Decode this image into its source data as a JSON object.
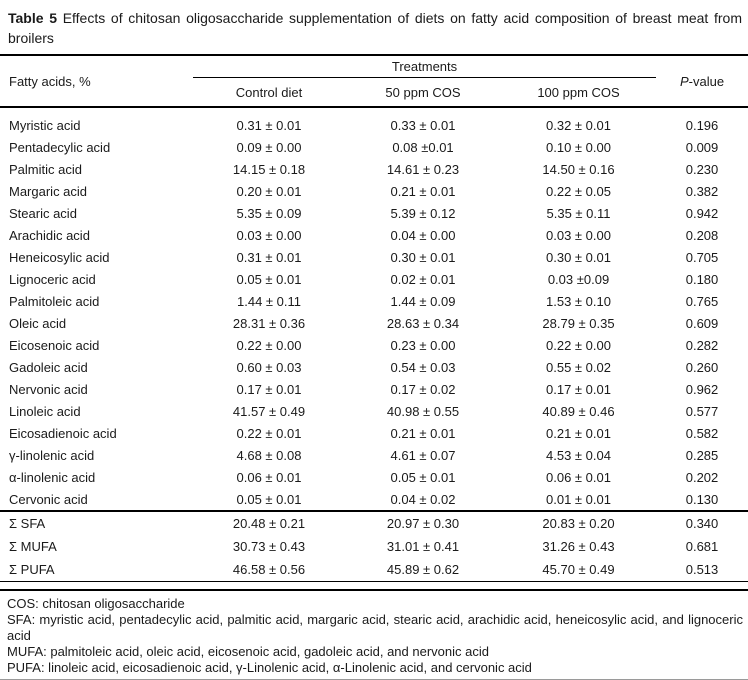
{
  "caption": {
    "label": "Table 5",
    "text": "Effects of chitosan oligosaccharide supplementation of diets on fatty acid composition of breast meat from broilers"
  },
  "table": {
    "header": {
      "row_label": "Fatty acids, %",
      "group_label": "Treatments",
      "treatments": [
        "Control diet",
        "50 ppm COS",
        "100 ppm COS"
      ],
      "p_label_italic": "P",
      "p_label_rest": "-value"
    },
    "rows": [
      {
        "name": "Myristic acid",
        "control": "0.31 ± 0.01",
        "cos50": "0.33 ± 0.01",
        "cos100": "0.32 ± 0.01",
        "p": "0.196"
      },
      {
        "name": "Pentadecylic acid",
        "control": "0.09 ± 0.00",
        "cos50": "0.08 ±0.01",
        "cos100": "0.10 ± 0.00",
        "p": "0.009"
      },
      {
        "name": "Palmitic acid",
        "control": "14.15 ± 0.18",
        "cos50": "14.61 ± 0.23",
        "cos100": "14.50 ± 0.16",
        "p": "0.230"
      },
      {
        "name": "Margaric acid",
        "control": "0.20 ± 0.01",
        "cos50": "0.21 ± 0.01",
        "cos100": "0.22 ± 0.05",
        "p": "0.382"
      },
      {
        "name": "Stearic acid",
        "control": "5.35 ± 0.09",
        "cos50": "5.39 ± 0.12",
        "cos100": "5.35 ± 0.11",
        "p": "0.942"
      },
      {
        "name": "Arachidic acid",
        "control": "0.03 ± 0.00",
        "cos50": "0.04 ± 0.00",
        "cos100": "0.03 ± 0.00",
        "p": "0.208"
      },
      {
        "name": "Heneicosylic acid",
        "control": "0.31 ± 0.01",
        "cos50": "0.30 ± 0.01",
        "cos100": "0.30 ± 0.01",
        "p": "0.705"
      },
      {
        "name": "Lignoceric acid",
        "control": "0.05 ± 0.01",
        "cos50": "0.02 ± 0.01",
        "cos100": "0.03 ±0.09",
        "p": "0.180"
      },
      {
        "name": "Palmitoleic acid",
        "control": "1.44 ± 0.11",
        "cos50": "1.44 ± 0.09",
        "cos100": "1.53 ± 0.10",
        "p": "0.765"
      },
      {
        "name": "Oleic acid",
        "control": "28.31 ± 0.36",
        "cos50": "28.63 ± 0.34",
        "cos100": "28.79 ± 0.35",
        "p": "0.609"
      },
      {
        "name": "Eicosenoic acid",
        "control": "0.22 ± 0.00",
        "cos50": "0.23 ± 0.00",
        "cos100": "0.22 ± 0.00",
        "p": "0.282"
      },
      {
        "name": "Gadoleic acid",
        "control": "0.60 ± 0.03",
        "cos50": "0.54 ± 0.03",
        "cos100": "0.55 ± 0.02",
        "p": "0.260"
      },
      {
        "name": "Nervonic acid",
        "control": "0.17 ± 0.01",
        "cos50": "0.17 ± 0.02",
        "cos100": "0.17 ± 0.01",
        "p": "0.962"
      },
      {
        "name": "Linoleic acid",
        "control": "41.57 ± 0.49",
        "cos50": "40.98 ± 0.55",
        "cos100": "40.89 ± 0.46",
        "p": "0.577"
      },
      {
        "name": "Eicosadienoic acid",
        "control": "0.22 ± 0.01",
        "cos50": "0.21 ± 0.01",
        "cos100": "0.21 ± 0.01",
        "p": "0.582"
      },
      {
        "name": "γ-linolenic acid",
        "control": "4.68 ± 0.08",
        "cos50": "4.61 ± 0.07",
        "cos100": "4.53 ± 0.04",
        "p": "0.285"
      },
      {
        "name": "α-linolenic acid",
        "control": "0.06 ± 0.01",
        "cos50": "0.05 ± 0.01",
        "cos100": "0.06 ± 0.01",
        "p": "0.202"
      },
      {
        "name": "Cervonic acid",
        "control": "0.05 ± 0.01",
        "cos50": "0.04 ± 0.02",
        "cos100": "0.01 ± 0.01",
        "p": "0.130"
      }
    ],
    "summary_rows": [
      {
        "name": "Σ SFA",
        "control": "20.48 ± 0.21",
        "cos50": "20.97 ± 0.30",
        "cos100": "20.83 ± 0.20",
        "p": "0.340"
      },
      {
        "name": "Σ MUFA",
        "control": "30.73 ± 0.43",
        "cos50": "31.01 ± 0.41",
        "cos100": "31.26 ± 0.43",
        "p": "0.681"
      },
      {
        "name": "Σ PUFA",
        "control": "46.58 ± 0.56",
        "cos50": "45.89 ± 0.62",
        "cos100": "45.70 ± 0.49",
        "p": "0.513"
      }
    ]
  },
  "footnotes": [
    "COS: chitosan oligosaccharide",
    "SFA: myristic acid, pentadecylic acid, palmitic acid, margaric acid, stearic acid, arachidic acid, heneicosylic acid, and lignoceric acid",
    "MUFA: palmitoleic acid, oleic acid, eicosenoic acid, gadoleic acid, and nervonic acid",
    "PUFA: linoleic acid, eicosadienoic acid, γ-Linolenic acid, α-Linolenic acid, and cervonic acid"
  ]
}
